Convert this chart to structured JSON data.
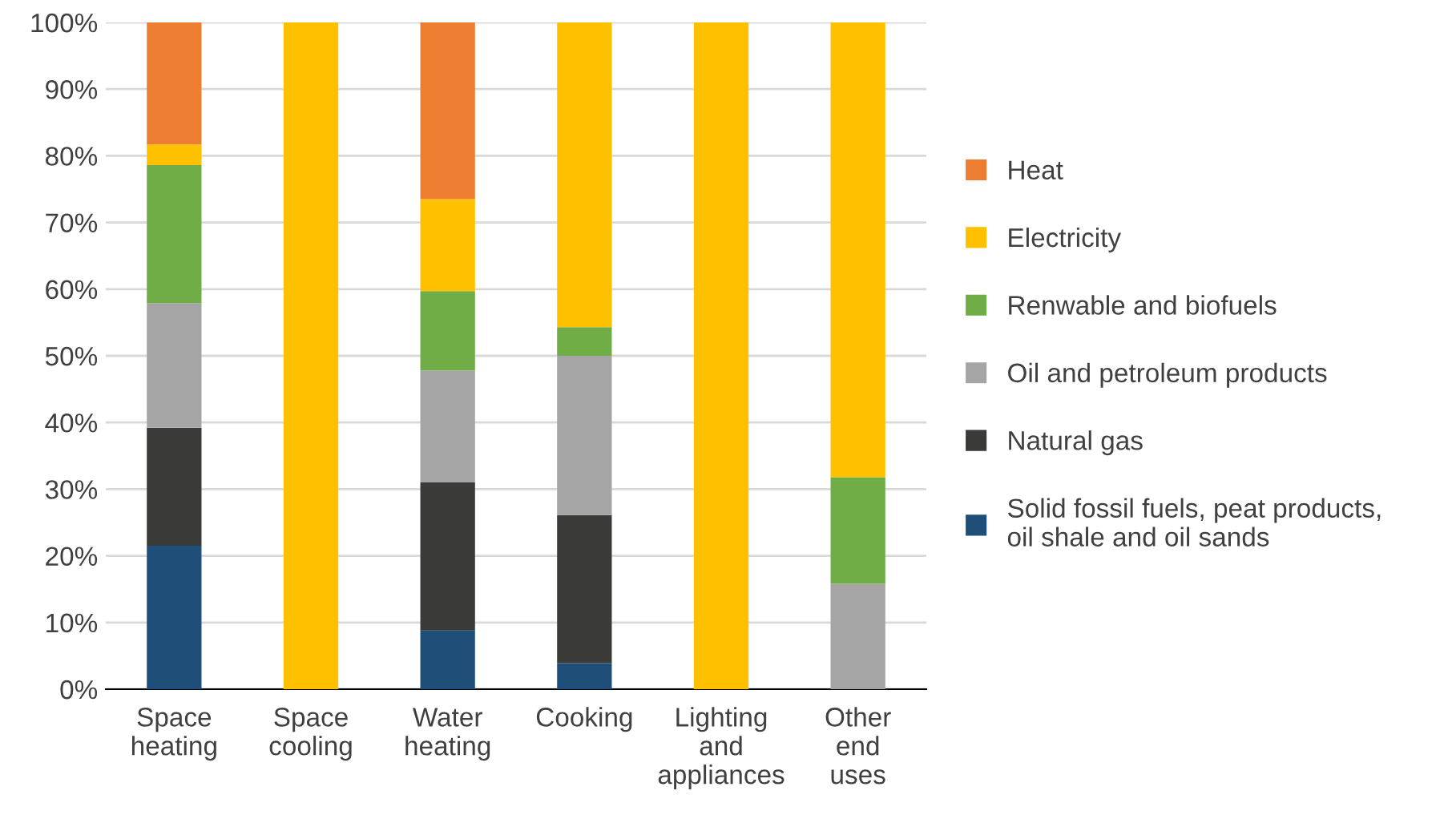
{
  "chart_data": {
    "type": "bar",
    "stacked": true,
    "categories": [
      "Space heating",
      "Space cooling",
      "Water heating",
      "Cooking",
      "Lighting and appliances",
      "Other end uses"
    ],
    "series": [
      {
        "name": "Solid fossil fuels, peat products, oil shale and oil sands",
        "color": "#1f4e79",
        "values": [
          21.5,
          0,
          8.8,
          3.9,
          0,
          0
        ]
      },
      {
        "name": "Natural gas",
        "color": "#3a3a38",
        "values": [
          17.7,
          0,
          22.2,
          22.2,
          0,
          0
        ]
      },
      {
        "name": "Oil and petroleum products",
        "color": "#a5a5a5",
        "values": [
          18.7,
          0,
          16.8,
          23.9,
          0,
          15.8
        ]
      },
      {
        "name": "Renwable and biofuels",
        "color": "#70ad47",
        "values": [
          20.7,
          0,
          11.9,
          4.3,
          0,
          16.0
        ]
      },
      {
        "name": "Electricity",
        "color": "#ffc000",
        "values": [
          3.1,
          100,
          13.8,
          45.7,
          100,
          68.2
        ]
      },
      {
        "name": "Heat",
        "color": "#ed7d31",
        "values": [
          18.3,
          0,
          26.5,
          0,
          0,
          0
        ]
      }
    ],
    "ylim": [
      0,
      100
    ],
    "yticks": [
      {
        "value": 0,
        "label": "0%"
      },
      {
        "value": 10,
        "label": "10%"
      },
      {
        "value": 20,
        "label": "20%"
      },
      {
        "value": 30,
        "label": "30%"
      },
      {
        "value": 40,
        "label": "40%"
      },
      {
        "value": 50,
        "label": "50%"
      },
      {
        "value": 60,
        "label": "60%"
      },
      {
        "value": 70,
        "label": "70%"
      },
      {
        "value": 80,
        "label": "80%"
      },
      {
        "value": 90,
        "label": "90%"
      },
      {
        "value": 100,
        "label": "100%"
      }
    ],
    "grid": "y",
    "legend": "right"
  }
}
